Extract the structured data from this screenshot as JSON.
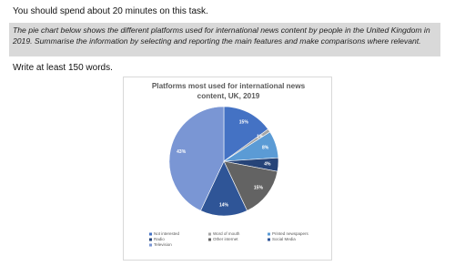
{
  "header": {
    "time_note": "You should spend about 20 minutes on this task."
  },
  "instructions": "The pie chart below shows the different platforms used for international news content by people in the United Kingdom in 2019. Summarise the information by selecting and reporting the main features and make comparisons where relevant.",
  "word_note": "Write at least 150 words.",
  "chart_data": {
    "type": "pie",
    "title": "Platforms most used for international news content, UK, 2019",
    "categories": [
      "Not interested",
      "Word of mouth",
      "Printed newspapers",
      "Radio",
      "Other internet",
      "Social Media",
      "Television"
    ],
    "values": [
      15,
      1,
      8,
      4,
      15,
      14,
      43
    ],
    "value_labels": [
      "15%",
      "1%",
      "8%",
      "4%",
      "15%",
      "14%",
      "43%"
    ],
    "colors": [
      "#4472c4",
      "#a5a5a5",
      "#5b9bd5",
      "#264478",
      "#636363",
      "#2f5597",
      "#7a96d4"
    ],
    "legend": "bottom"
  }
}
